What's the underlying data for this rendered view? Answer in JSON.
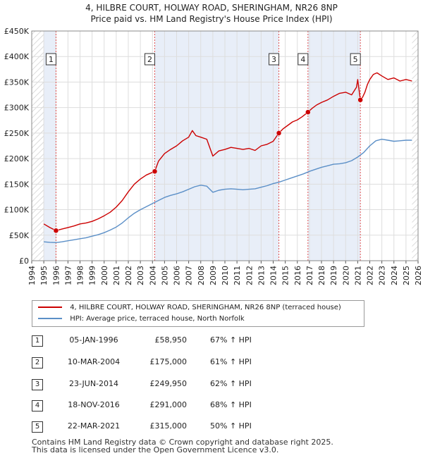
{
  "title_line1": "4, HILBRE COURT, HOLWAY ROAD, SHERINGHAM, NR26 8NP",
  "title_line2": "Price paid vs. HM Land Registry's House Price Index (HPI)",
  "chart_data": {
    "type": "line",
    "xlim": [
      1994,
      2026
    ],
    "ylim": [
      0,
      450000
    ],
    "y_ticks": [
      0,
      50000,
      100000,
      150000,
      200000,
      250000,
      300000,
      350000,
      400000,
      450000
    ],
    "y_tick_labels": [
      "£0",
      "£50K",
      "£100K",
      "£150K",
      "£200K",
      "£250K",
      "£300K",
      "£350K",
      "£400K",
      "£450K"
    ],
    "x_ticks": [
      1994,
      1995,
      1996,
      1997,
      1998,
      1999,
      2000,
      2001,
      2002,
      2003,
      2004,
      2005,
      2006,
      2007,
      2008,
      2009,
      2010,
      2011,
      2012,
      2013,
      2014,
      2015,
      2016,
      2017,
      2018,
      2019,
      2020,
      2021,
      2022,
      2023,
      2024,
      2025,
      2026
    ],
    "data_range": [
      1995.0,
      2025.5
    ],
    "series": [
      {
        "name": "4, HILBRE COURT, HOLWAY ROAD, SHERINGHAM, NR26 8NP (terraced house)",
        "color": "#cc0000",
        "x": [
          1995.0,
          1995.5,
          1996.01,
          1996.5,
          1997.0,
          1997.5,
          1998.0,
          1998.5,
          1999.0,
          1999.5,
          2000.0,
          2000.5,
          2001.0,
          2001.5,
          2002.0,
          2002.5,
          2003.0,
          2003.5,
          2004.19,
          2004.5,
          2005.0,
          2005.5,
          2006.0,
          2006.5,
          2007.0,
          2007.3,
          2007.6,
          2008.0,
          2008.5,
          2009.0,
          2009.5,
          2010.0,
          2010.5,
          2011.0,
          2011.5,
          2012.0,
          2012.5,
          2013.0,
          2013.5,
          2014.0,
          2014.47,
          2014.8,
          2015.2,
          2015.6,
          2016.0,
          2016.4,
          2016.88,
          2017.2,
          2017.6,
          2018.0,
          2018.5,
          2019.0,
          2019.5,
          2020.0,
          2020.5,
          2020.9,
          2021.0,
          2021.22,
          2021.4,
          2021.6,
          2021.8,
          2022.0,
          2022.3,
          2022.6,
          2023.0,
          2023.5,
          2024.0,
          2024.5,
          2025.0,
          2025.5
        ],
        "y": [
          72000,
          65000,
          58950,
          62000,
          65000,
          68000,
          72000,
          74000,
          77000,
          82000,
          88000,
          95000,
          105000,
          118000,
          135000,
          150000,
          160000,
          168000,
          175000,
          195000,
          210000,
          218000,
          225000,
          235000,
          242000,
          255000,
          245000,
          242000,
          238000,
          205000,
          215000,
          218000,
          222000,
          220000,
          218000,
          220000,
          216000,
          225000,
          228000,
          234000,
          249950,
          258000,
          265000,
          272000,
          276000,
          282000,
          291000,
          298000,
          305000,
          310000,
          315000,
          322000,
          328000,
          330000,
          325000,
          340000,
          355000,
          315000,
          320000,
          330000,
          345000,
          355000,
          365000,
          368000,
          362000,
          355000,
          358000,
          352000,
          355000,
          352000
        ]
      },
      {
        "name": "HPI: Average price, terraced house, North Norfolk",
        "color": "#5b8fc7",
        "x": [
          1995.0,
          1995.5,
          1996.0,
          1996.5,
          1997.0,
          1997.5,
          1998.0,
          1998.5,
          1999.0,
          1999.5,
          2000.0,
          2000.5,
          2001.0,
          2001.5,
          2002.0,
          2002.5,
          2003.0,
          2003.5,
          2004.0,
          2004.5,
          2005.0,
          2005.5,
          2006.0,
          2006.5,
          2007.0,
          2007.5,
          2008.0,
          2008.5,
          2009.0,
          2009.5,
          2010.0,
          2010.5,
          2011.0,
          2011.5,
          2012.0,
          2012.5,
          2013.0,
          2013.5,
          2014.0,
          2014.5,
          2015.0,
          2015.5,
          2016.0,
          2016.5,
          2017.0,
          2017.5,
          2018.0,
          2018.5,
          2019.0,
          2019.5,
          2020.0,
          2020.5,
          2021.0,
          2021.5,
          2022.0,
          2022.5,
          2023.0,
          2023.5,
          2024.0,
          2024.5,
          2025.0,
          2025.5
        ],
        "y": [
          37000,
          36000,
          35500,
          37000,
          39000,
          41000,
          43000,
          45000,
          48000,
          51000,
          55000,
          60000,
          66000,
          74000,
          84000,
          93000,
          100000,
          106000,
          112000,
          118000,
          124000,
          128000,
          131000,
          135000,
          140000,
          145000,
          148000,
          146000,
          134000,
          138000,
          140000,
          141000,
          140000,
          139000,
          140000,
          141000,
          144000,
          147000,
          151000,
          154000,
          158000,
          162000,
          166000,
          170000,
          175000,
          179000,
          183000,
          186000,
          189000,
          190000,
          192000,
          196000,
          203000,
          212000,
          225000,
          235000,
          238000,
          236000,
          234000,
          235000,
          236000,
          236000
        ]
      }
    ],
    "sale_markers": [
      {
        "id": "1",
        "x": 1996.01,
        "y": 58950
      },
      {
        "id": "2",
        "x": 2004.19,
        "y": 175000
      },
      {
        "id": "3",
        "x": 2014.47,
        "y": 249950
      },
      {
        "id": "4",
        "x": 2016.88,
        "y": 291000
      },
      {
        "id": "5",
        "x": 2021.22,
        "y": 315000
      }
    ],
    "shaded_periods": [
      [
        1995.0,
        1996.01
      ],
      [
        2004.19,
        2014.47
      ],
      [
        2016.88,
        2021.22
      ]
    ],
    "hatched_periods": [
      [
        1994.0,
        1995.0
      ],
      [
        2025.5,
        2026.0
      ]
    ]
  },
  "legend": {
    "price_label": "4, HILBRE COURT, HOLWAY ROAD, SHERINGHAM, NR26 8NP (terraced house)",
    "hpi_label": "HPI: Average price, terraced house, North Norfolk"
  },
  "sales": [
    {
      "num": "1",
      "date": "05-JAN-1996",
      "price": "£58,950",
      "hpi": "67% ↑ HPI"
    },
    {
      "num": "2",
      "date": "10-MAR-2004",
      "price": "£175,000",
      "hpi": "61% ↑ HPI"
    },
    {
      "num": "3",
      "date": "23-JUN-2014",
      "price": "£249,950",
      "hpi": "62% ↑ HPI"
    },
    {
      "num": "4",
      "date": "18-NOV-2016",
      "price": "£291,000",
      "hpi": "68% ↑ HPI"
    },
    {
      "num": "5",
      "date": "22-MAR-2021",
      "price": "£315,000",
      "hpi": "50% ↑ HPI"
    }
  ],
  "footer": {
    "line1": "Contains HM Land Registry data © Crown copyright and database right 2025.",
    "line2": "This data is licensed under the Open Government Licence v3.0."
  }
}
